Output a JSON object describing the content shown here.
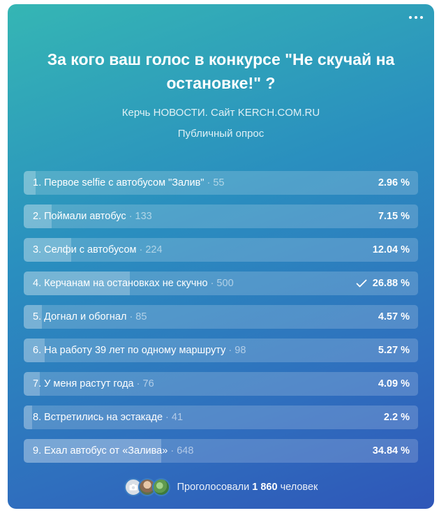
{
  "poll": {
    "title": "За кого ваш голос в конкурсе \"Не скучай на остановке!\" ?",
    "author": "Керчь НОВОСТИ. Сайт KERCH.COM.RU",
    "type": "Публичный опрос",
    "more_icon": "more-horizontal-icon",
    "options": [
      {
        "label": "1. Первое selfie с автобусом \"Залив\"",
        "count": "· 55",
        "percent": "2.96 %",
        "fraction": 0.0296,
        "voted": false
      },
      {
        "label": "2. Поймали автобус",
        "count": "· 133",
        "percent": "7.15 %",
        "fraction": 0.0715,
        "voted": false
      },
      {
        "label": "3. Селфи с автобусом",
        "count": "· 224",
        "percent": "12.04 %",
        "fraction": 0.1204,
        "voted": false
      },
      {
        "label": "4. Керчанам на остановках не скучно",
        "count": "· 500",
        "percent": "26.88 %",
        "fraction": 0.2688,
        "voted": true
      },
      {
        "label": "5. Догнал и обогнал",
        "count": "· 85",
        "percent": "4.57 %",
        "fraction": 0.0457,
        "voted": false
      },
      {
        "label": "6. На работу 39 лет по одному маршруту",
        "count": "· 98",
        "percent": "5.27 %",
        "fraction": 0.0527,
        "voted": false
      },
      {
        "label": "7. У меня растут года",
        "count": "· 76",
        "percent": "4.09 %",
        "fraction": 0.0409,
        "voted": false
      },
      {
        "label": "8. Встретились на эстакаде",
        "count": "· 41",
        "percent": "2.2 %",
        "fraction": 0.022,
        "voted": false
      },
      {
        "label": "9. Ехал автобус от «Залива»",
        "count": "· 648",
        "percent": "34.84 %",
        "fraction": 0.3484,
        "voted": false
      }
    ],
    "footer": {
      "voted_prefix": "Проголосовали",
      "voted_count": "1 860",
      "voted_suffix": "человек"
    }
  }
}
